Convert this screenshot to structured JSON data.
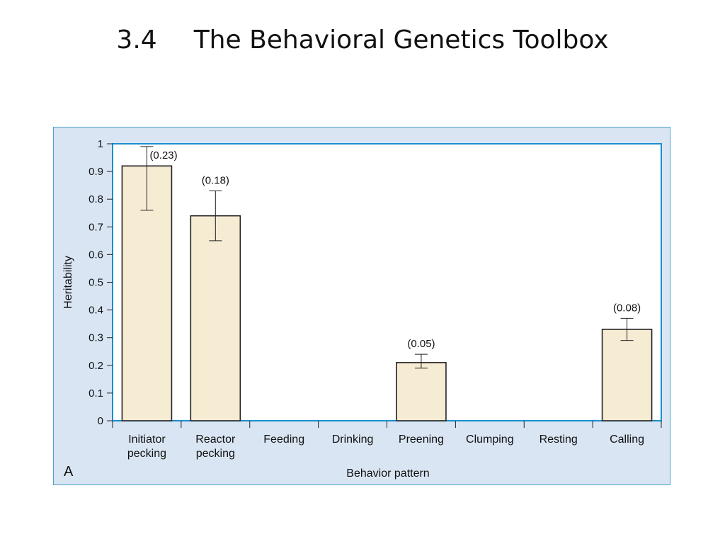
{
  "slide": {
    "number": "3.4",
    "title": "The Behavioral Genetics Toolbox"
  },
  "chart_data": {
    "type": "bar",
    "panel_label": "A",
    "xlabel": "Behavior pattern",
    "ylabel": "Heritability",
    "ylim": [
      0,
      1
    ],
    "yticks": [
      "0",
      "0.1",
      "0.2",
      "0.3",
      "0.4",
      "0.5",
      "0.6",
      "0.7",
      "0.8",
      "0.9",
      "1"
    ],
    "categories": [
      [
        "Initiator",
        "pecking"
      ],
      [
        "Reactor",
        "pecking"
      ],
      [
        "Feeding"
      ],
      [
        "Drinking"
      ],
      [
        "Preening"
      ],
      [
        "Clumping"
      ],
      [
        "Resting"
      ],
      [
        "Calling"
      ]
    ],
    "values": [
      0.92,
      0.74,
      null,
      null,
      0.21,
      null,
      null,
      0.33
    ],
    "error_low": [
      0.76,
      0.65,
      null,
      null,
      0.19,
      null,
      null,
      0.29
    ],
    "error_high": [
      0.99,
      0.83,
      null,
      null,
      0.24,
      null,
      null,
      0.37
    ],
    "data_labels": [
      "(0.23)",
      "(0.18)",
      "",
      "",
      "(0.05)",
      "",
      "",
      "(0.08)"
    ],
    "colors": {
      "bar_fill": "#f6ecd3",
      "bar_stroke": "#222222",
      "plot_border": "#1a8fd0",
      "figure_bg": "#d9e5f3",
      "plot_bg": "#ffffff"
    }
  }
}
